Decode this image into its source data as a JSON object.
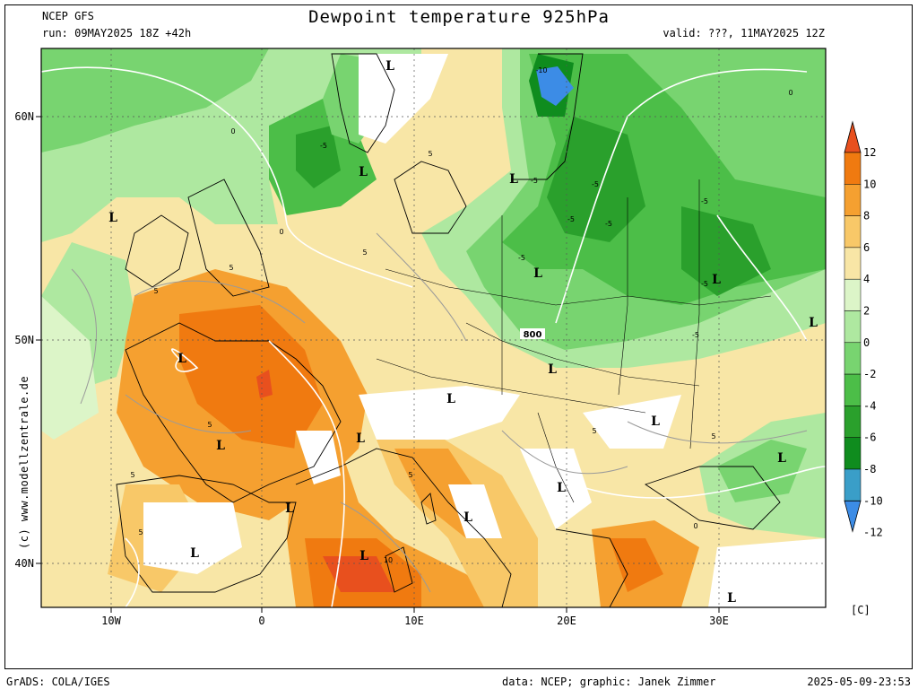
{
  "header": {
    "model": "NCEP GFS",
    "title": "Dewpoint temperature 925hPa",
    "run": "run: 09MAY2025 18Z +42h",
    "valid": "valid: ???, 11MAY2025 12Z"
  },
  "side_credit": "(c) www.modellzentrale.de",
  "footer": {
    "left": "GrADS: COLA/IGES",
    "center": "data: NCEP; graphic: Janek Zimmer",
    "right": "2025-05-09-23:53"
  },
  "axes": {
    "lat_labels": [
      "60N",
      "50N",
      "40N"
    ],
    "lon_labels": [
      "10W",
      "0",
      "10E",
      "20E",
      "30E"
    ]
  },
  "colorbar": {
    "unit": "[C]",
    "levels": [
      "12",
      "10",
      "8",
      "6",
      "4",
      "2",
      "0",
      "-2",
      "-4",
      "-6",
      "-8",
      "-10",
      "-12"
    ],
    "colors": [
      "#e8501e",
      "#f07a10",
      "#f5a030",
      "#f8c868",
      "#f8e6a6",
      "#dcf5c8",
      "#aee8a0",
      "#78d470",
      "#4cbe48",
      "#2aa02c",
      "#0f8c1e",
      "#3a9ec8",
      "#3c8ce6"
    ]
  },
  "map_labels": {
    "lows": [
      "L",
      "L",
      "L",
      "L",
      "L",
      "L",
      "L",
      "L",
      "L",
      "L",
      "L",
      "L",
      "L",
      "L",
      "L",
      "L",
      "L",
      "L",
      "L",
      "L"
    ],
    "contour_values": [
      "-10",
      "-5",
      "-5",
      "-5",
      "-5",
      "-5",
      "-5",
      "-5",
      "-5",
      "-5",
      "0",
      "0",
      "0",
      "0",
      "5",
      "5",
      "5",
      "5",
      "5",
      "5",
      "5",
      "5",
      "5",
      "5",
      "10",
      "800"
    ]
  }
}
